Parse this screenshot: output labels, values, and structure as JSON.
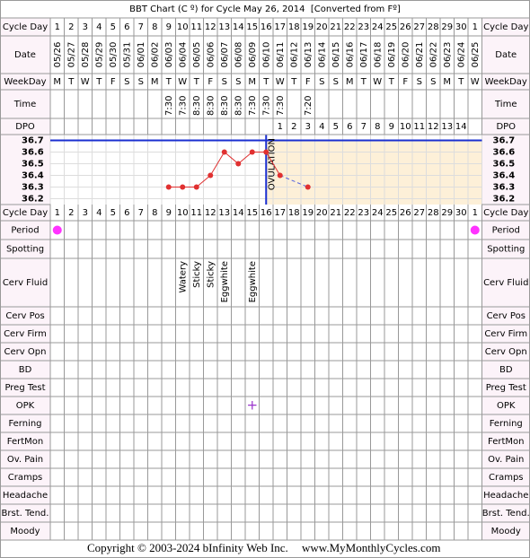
{
  "title": "BBT Chart (C º) for Cycle May 26, 2014  [Converted from Fº]",
  "row_labels": [
    "Cycle Day",
    "Date",
    "WeekDay",
    "Time",
    "DPO",
    "Cycle Day",
    "Period",
    "Spotting",
    "Cerv Fluid",
    "Cerv Pos",
    "Cerv Firm",
    "Cerv Opn",
    "BD",
    "Preg Test",
    "OPK",
    "Ferning",
    "FertMon",
    "Ov. Pain",
    "Cramps",
    "Headache",
    "Brst. Tend.",
    "Moody"
  ],
  "cycle_days": [
    1,
    2,
    3,
    4,
    5,
    6,
    7,
    8,
    9,
    10,
    11,
    12,
    13,
    14,
    15,
    16,
    17,
    18,
    19,
    20,
    21,
    22,
    23,
    24,
    25,
    26,
    27,
    28,
    29,
    30,
    1
  ],
  "dates": [
    "05/26",
    "05/27",
    "05/28",
    "05/29",
    "05/30",
    "05/31",
    "06/01",
    "06/02",
    "06/03",
    "06/04",
    "06/05",
    "06/06",
    "06/07",
    "06/08",
    "06/09",
    "06/10",
    "06/11",
    "06/12",
    "06/13",
    "06/14",
    "06/15",
    "06/16",
    "06/17",
    "06/18",
    "06/19",
    "06/20",
    "06/21",
    "06/22",
    "06/23",
    "06/24",
    "06/25"
  ],
  "weekdays": [
    "M",
    "T",
    "W",
    "T",
    "F",
    "S",
    "S",
    "M",
    "T",
    "W",
    "T",
    "F",
    "S",
    "S",
    "M",
    "T",
    "W",
    "T",
    "F",
    "S",
    "S",
    "M",
    "T",
    "W",
    "T",
    "F",
    "S",
    "S",
    "M",
    "T",
    "W"
  ],
  "times": [
    null,
    null,
    null,
    null,
    null,
    null,
    null,
    null,
    "7:30",
    "7:30",
    "8:30",
    "8:30",
    "8:30",
    "8:30",
    "7:30",
    "7:30",
    "7:30",
    null,
    "7:20",
    null,
    null,
    null,
    null,
    null,
    null,
    null,
    null,
    null,
    null,
    null,
    null
  ],
  "dpo": [
    null,
    null,
    null,
    null,
    null,
    null,
    null,
    null,
    null,
    null,
    null,
    null,
    null,
    null,
    null,
    null,
    1,
    2,
    3,
    4,
    5,
    6,
    7,
    8,
    9,
    10,
    11,
    12,
    13,
    14,
    null
  ],
  "temperature": {
    "ylim": [
      36.15,
      36.75
    ],
    "yticks": [
      36.7,
      36.6,
      36.5,
      36.4,
      36.3,
      36.2
    ],
    "values": [
      null,
      null,
      null,
      null,
      null,
      null,
      null,
      null,
      36.3,
      36.3,
      36.3,
      36.4,
      36.6,
      36.5,
      36.6,
      36.6,
      36.4,
      null,
      36.3,
      null,
      null,
      null,
      null,
      null,
      null,
      null,
      null,
      null,
      null,
      null,
      null
    ],
    "color": "#e03030",
    "cover_line": 36.7,
    "ovulation_day": 16,
    "ovulation_label": "OVULATION"
  },
  "period_days": [
    1,
    31
  ],
  "cerv_fluid": [
    null,
    null,
    null,
    null,
    null,
    null,
    null,
    null,
    null,
    "Watery",
    "Sticky",
    "Sticky",
    "Eggwhite",
    null,
    "Eggwhite",
    null,
    null,
    null,
    null,
    null,
    null,
    null,
    null,
    null,
    null,
    null,
    null,
    null,
    null,
    null,
    null
  ],
  "opk": [
    null,
    null,
    null,
    null,
    null,
    null,
    null,
    null,
    null,
    null,
    null,
    null,
    null,
    null,
    "+",
    null,
    null,
    null,
    null,
    null,
    null,
    null,
    null,
    null,
    null,
    null,
    null,
    null,
    null,
    null,
    null
  ],
  "footer": {
    "copyright": "Copyright © 2003-2024 bInfinity Web Inc.",
    "website": "www.MyMonthlyCycles.com"
  }
}
